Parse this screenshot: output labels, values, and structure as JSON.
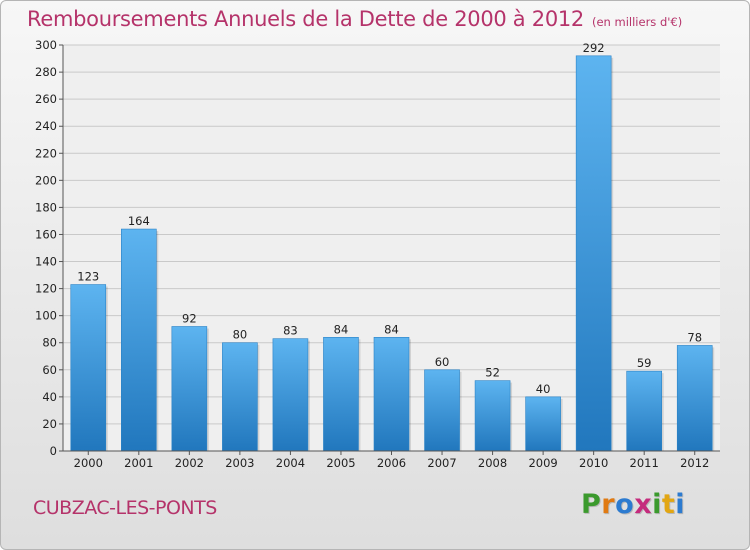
{
  "title": "Remboursements Annuels de la Dette de 2000 à 2012",
  "subtitle": "(en milliers d'€)",
  "city": "CUBZAC-LES-PONTS",
  "logo": {
    "letters": [
      "P",
      "r",
      "o",
      "x",
      "i",
      "t",
      "i"
    ],
    "colors": [
      "#3b9a2d",
      "#e07a12",
      "#2c7bd0",
      "#c52b7d",
      "#3b9a2d",
      "#e2a613",
      "#2c7bd0"
    ]
  },
  "colors": {
    "bar": "#4aa3e6",
    "bar_dark": "#2177bd",
    "title": "#b5336a"
  },
  "chart_data": {
    "type": "bar",
    "title": "Remboursements Annuels de la Dette de 2000 à 2012",
    "subtitle": "(en milliers d'€)",
    "categories": [
      "2000",
      "2001",
      "2002",
      "2003",
      "2004",
      "2005",
      "2006",
      "2007",
      "2008",
      "2009",
      "2010",
      "2011",
      "2012"
    ],
    "values": [
      123,
      164,
      92,
      80,
      83,
      84,
      84,
      60,
      52,
      40,
      292,
      59,
      78
    ],
    "ylim": [
      0,
      300
    ],
    "yticks": [
      0,
      20,
      40,
      60,
      80,
      100,
      120,
      140,
      160,
      180,
      200,
      220,
      240,
      260,
      280,
      300
    ],
    "grid": true,
    "data_labels": true
  }
}
